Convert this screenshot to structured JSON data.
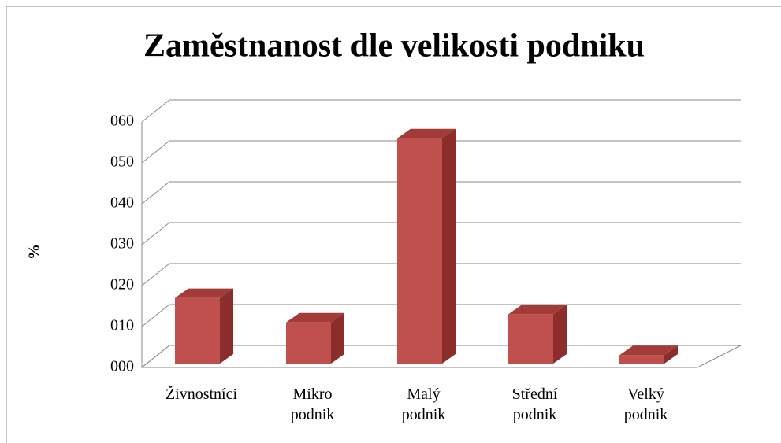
{
  "chart_data": {
    "type": "bar3d",
    "title": "Zaměstnanost dle velikosti podniku",
    "ylabel": "%",
    "categories": [
      "Živnostníci",
      "Mikro podnik",
      "Malý podnik",
      "Střední podnik",
      "Velký podnik"
    ],
    "values": [
      17,
      11,
      56,
      13,
      3
    ],
    "color": "#c0504d",
    "ylim": [
      0,
      60
    ],
    "yticks": [
      {
        "value": 0,
        "label": "000"
      },
      {
        "value": 10,
        "label": "010"
      },
      {
        "value": 20,
        "label": "020"
      },
      {
        "value": 30,
        "label": "030"
      },
      {
        "value": 40,
        "label": "040"
      },
      {
        "value": 50,
        "label": "050"
      },
      {
        "value": 60,
        "label": "060"
      }
    ],
    "grid": true
  }
}
